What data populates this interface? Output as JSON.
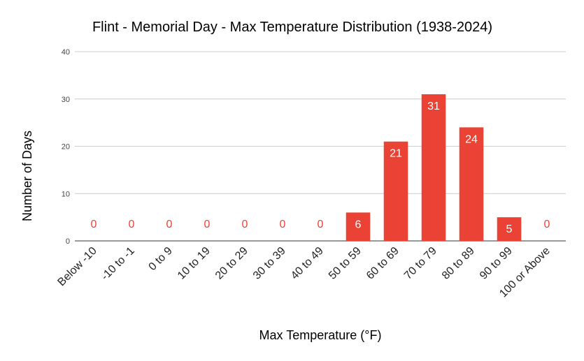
{
  "chart_data": {
    "type": "bar",
    "title": "Flint - Memorial Day - Max Temperature Distribution (1938-2024)",
    "xlabel": "Max Temperature (°F)",
    "ylabel": "Number of Days",
    "categories": [
      "Below -10",
      "-10 to -1",
      "0 to 9",
      "10 to 19",
      "20 to 29",
      "30 to 39",
      "40 to 49",
      "50 to 59",
      "60 to 69",
      "70 to 79",
      "80 to 89",
      "90 to 99",
      "100 or Above"
    ],
    "values": [
      0,
      0,
      0,
      0,
      0,
      0,
      0,
      6,
      21,
      31,
      24,
      5,
      0
    ],
    "ylim": [
      0,
      40
    ],
    "yticks": [
      0,
      10,
      20,
      30,
      40
    ],
    "grid": true,
    "data_labels": true,
    "colors": {
      "bar": "#ea4335",
      "label_inside": "#ffffff",
      "label_outside": "#ea4335",
      "grid": "#cccccc",
      "axis": "#333333"
    }
  }
}
